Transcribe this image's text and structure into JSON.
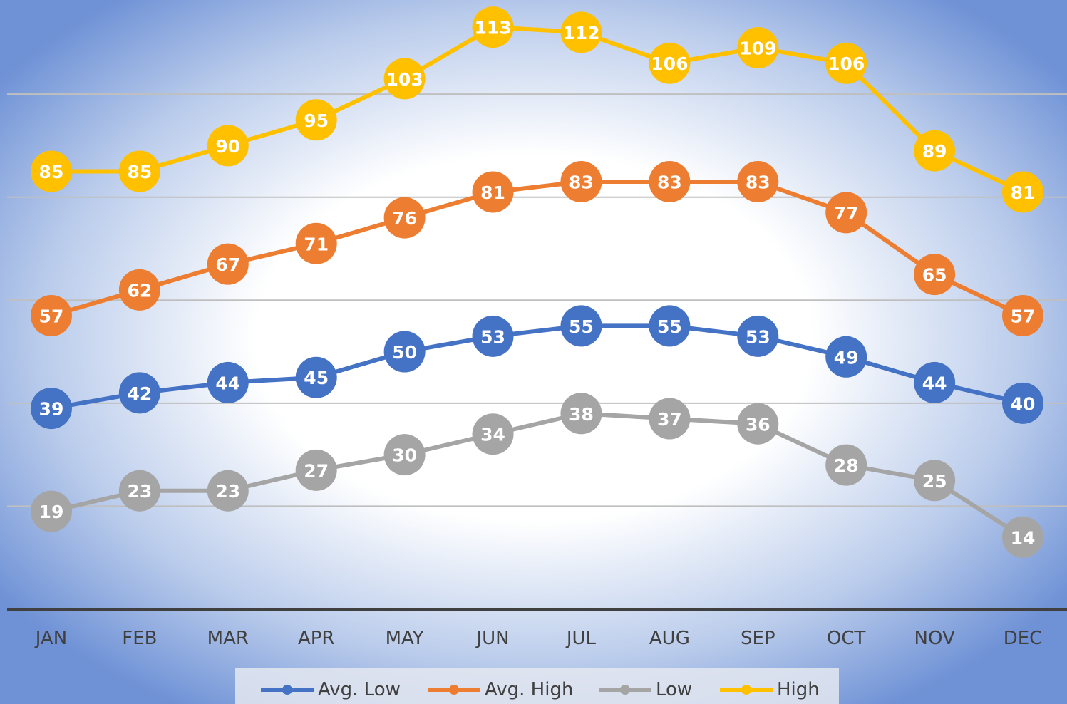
{
  "chart_data": {
    "type": "line",
    "categories": [
      "JAN",
      "FEB",
      "MAR",
      "APR",
      "MAY",
      "JUN",
      "JUL",
      "AUG",
      "SEP",
      "OCT",
      "NOV",
      "DEC"
    ],
    "series": [
      {
        "name": "Avg. Low",
        "color": "#4472c4",
        "values": [
          39,
          42,
          44,
          45,
          50,
          53,
          55,
          55,
          53,
          49,
          44,
          40
        ]
      },
      {
        "name": "Avg. High",
        "color": "#ed7d31",
        "values": [
          57,
          62,
          67,
          71,
          76,
          81,
          83,
          83,
          83,
          77,
          65,
          57
        ]
      },
      {
        "name": "Low",
        "color": "#a5a5a5",
        "values": [
          19,
          23,
          23,
          27,
          30,
          34,
          38,
          37,
          36,
          28,
          25,
          14
        ]
      },
      {
        "name": "High",
        "color": "#ffc000",
        "values": [
          85,
          85,
          90,
          95,
          103,
          113,
          112,
          106,
          109,
          106,
          89,
          81
        ]
      }
    ],
    "ylim": [
      0,
      118
    ],
    "yticks": [
      0,
      20,
      40,
      60,
      80,
      100
    ],
    "grid": true,
    "legend": "bottom"
  }
}
